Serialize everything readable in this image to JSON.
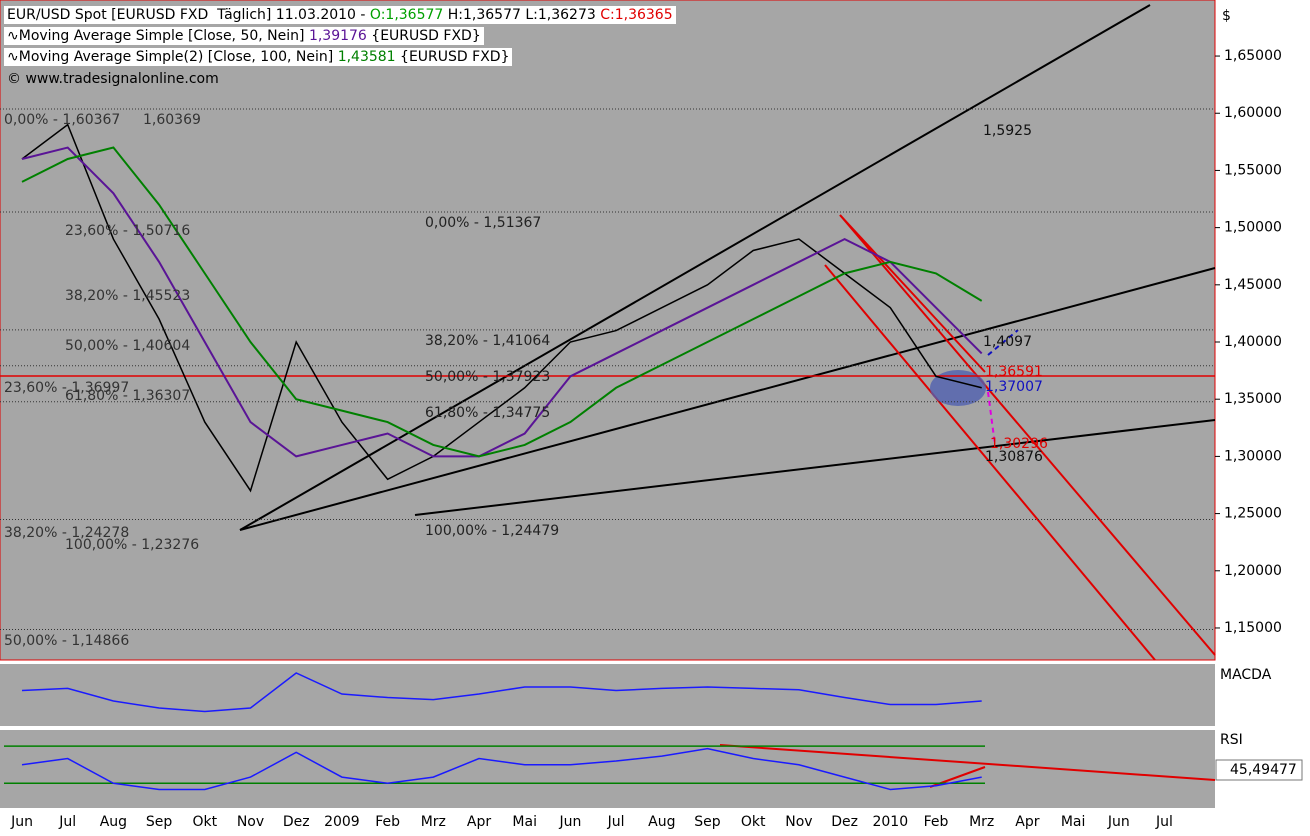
{
  "chart_data": [
    {
      "type": "line",
      "currency": "$",
      "copyright": "© www.tradesignalonline.com",
      "categories": [
        "Jun",
        "Jul",
        "Aug",
        "Sep",
        "Okt",
        "Nov",
        "Dez",
        "2009",
        "Feb",
        "Mrz",
        "Apr",
        "Mai",
        "Jun",
        "Jul",
        "Aug",
        "Sep",
        "Okt",
        "Nov",
        "Dez",
        "2010",
        "Feb",
        "Mrz",
        "Apr",
        "Mai",
        "Jun",
        "Jul"
      ],
      "ylim": [
        1.122,
        1.699
      ],
      "yticks": [
        {
          "value": 1.65,
          "label": "1,65000"
        },
        {
          "value": 1.6,
          "label": "1,60000"
        },
        {
          "value": 1.55,
          "label": "1,55000"
        },
        {
          "value": 1.5,
          "label": "1,50000"
        },
        {
          "value": 1.45,
          "label": "1,45000"
        },
        {
          "value": 1.4,
          "label": "1,40000"
        },
        {
          "value": 1.35,
          "label": "1,35000"
        },
        {
          "value": 1.3,
          "label": "1,30000"
        },
        {
          "value": 1.25,
          "label": "1,25000"
        },
        {
          "value": 1.2,
          "label": "1,20000"
        },
        {
          "value": 1.15,
          "label": "1,15000"
        }
      ],
      "series": [
        {
          "name": "EUR/USD Spot [EURUSD FXD  Täglich] 11.03.2010 -",
          "open_label": "O:1,36577",
          "high_low_label": "H:1,36577 L:1,36273",
          "close_label": "C:1,36365",
          "color": "#000000",
          "values": [
            1.56,
            1.59,
            1.49,
            1.42,
            1.33,
            1.27,
            1.4,
            1.33,
            1.28,
            1.3,
            1.33,
            1.36,
            1.4,
            1.41,
            1.43,
            1.45,
            1.48,
            1.49,
            1.46,
            1.43,
            1.37,
            1.36,
            null,
            null,
            null,
            null
          ]
        },
        {
          "name": "Moving Average Simple [Close, 50, Nein]",
          "last_label": "1,39176",
          "source": "{EURUSD FXD}",
          "color": "#5a1496",
          "values": [
            1.56,
            1.57,
            1.53,
            1.47,
            1.4,
            1.33,
            1.3,
            1.31,
            1.32,
            1.3,
            1.3,
            1.32,
            1.37,
            1.39,
            1.41,
            1.43,
            1.45,
            1.47,
            1.49,
            1.47,
            1.43,
            1.39,
            null,
            null,
            null,
            null
          ]
        },
        {
          "name": "Moving Average Simple(2) [Close, 100, Nein]",
          "last_label": "1,43581",
          "source": "{EURUSD FXD}",
          "color": "#008000",
          "values": [
            1.54,
            1.56,
            1.57,
            1.52,
            1.46,
            1.4,
            1.35,
            1.34,
            1.33,
            1.31,
            1.3,
            1.31,
            1.33,
            1.36,
            1.38,
            1.4,
            1.42,
            1.44,
            1.46,
            1.47,
            1.46,
            1.436,
            null,
            null,
            null,
            null
          ]
        }
      ],
      "levels": [
        1.60367,
        1.51367,
        1.41064,
        1.37923,
        1.34775,
        1.24479,
        1.14866
      ],
      "red_level": 1.3703,
      "annotations": [
        {
          "text": "0,00% - 1,60367",
          "color": "#333333"
        },
        {
          "text": "1,60369",
          "color": "#333333"
        },
        {
          "text": "23,60% - 1,50716",
          "color": "#333333"
        },
        {
          "text": "38,20% - 1,45523",
          "color": "#333333"
        },
        {
          "text": "50,00% - 1,40604",
          "color": "#333333"
        },
        {
          "text": "23,60% - 1,36997",
          "color": "#333333"
        },
        {
          "text": "61,80% - 1,36307",
          "color": "#333333"
        },
        {
          "text": "38,20% - 1,24278",
          "color": "#333333"
        },
        {
          "text": "100,00% - 1,23276",
          "color": "#333333"
        },
        {
          "text": "50,00% - 1,14866",
          "color": "#333333"
        },
        {
          "text": "0,00% - 1,51367",
          "color": "#222222"
        },
        {
          "text": "38,20% - 1,41064",
          "color": "#222222"
        },
        {
          "text": "50,00% - 1,37923",
          "color": "#222222"
        },
        {
          "text": "61,80% - 1,34775",
          "color": "#222222"
        },
        {
          "text": "100,00% - 1,24479",
          "color": "#222222"
        },
        {
          "text": "1,5925",
          "color": "#111111"
        },
        {
          "text": "1,4097",
          "color": "#111111"
        },
        {
          "text": "1,36591",
          "color": "#e00000"
        },
        {
          "text": "1,37007",
          "color": "#1010c0"
        },
        {
          "text": "1,30296",
          "color": "#e00000"
        },
        {
          "text": "1,30876",
          "color": "#111111"
        }
      ]
    },
    {
      "type": "line",
      "label": "MACDA",
      "color": "#1a1aff",
      "ylim": [
        -0.04,
        0.04
      ],
      "values": [
        0.005,
        0.008,
        -0.01,
        -0.02,
        -0.025,
        -0.02,
        0.03,
        0,
        -0.005,
        -0.008,
        0,
        0.01,
        0.01,
        0.005,
        0.008,
        0.01,
        0.008,
        0.006,
        -0.005,
        -0.015,
        -0.015,
        -0.01,
        null,
        null,
        null,
        null
      ]
    },
    {
      "type": "line",
      "label": "RSI",
      "last_label": "45,49477",
      "color": "#1a1aff",
      "ylim": [
        20,
        75
      ],
      "levels": [
        70,
        40
      ],
      "values": [
        55,
        60,
        40,
        35,
        35,
        45,
        65,
        45,
        40,
        45,
        60,
        55,
        55,
        58,
        62,
        68,
        60,
        55,
        45,
        35,
        38,
        45,
        null,
        null,
        null,
        null
      ]
    }
  ]
}
